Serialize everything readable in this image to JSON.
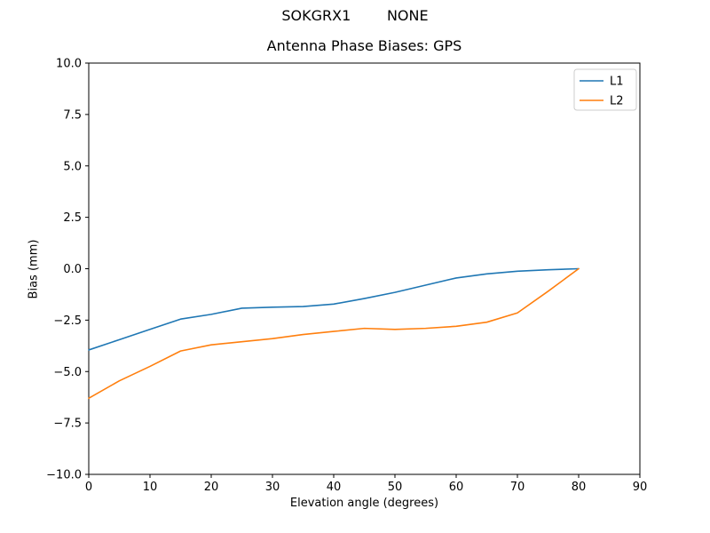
{
  "figure": {
    "suptitle": "SOKGRX1        NONE"
  },
  "chart_data": {
    "type": "line",
    "title": "Antenna Phase Biases: GPS",
    "xlabel": "Elevation angle (degrees)",
    "ylabel": "Bias (mm)",
    "xlim": [
      0,
      90
    ],
    "ylim": [
      -10,
      10
    ],
    "grid": false,
    "legend_position": "upper right",
    "xticks": [
      0,
      10,
      20,
      30,
      40,
      50,
      60,
      70,
      80,
      90
    ],
    "xtick_labels": [
      "0",
      "10",
      "20",
      "30",
      "40",
      "50",
      "60",
      "70",
      "80",
      "90"
    ],
    "yticks": [
      -10,
      -7.5,
      -5,
      -2.5,
      0,
      2.5,
      5,
      7.5,
      10
    ],
    "ytick_labels": [
      "−10.0",
      "−7.5",
      "−5.0",
      "−2.5",
      "0.0",
      "2.5",
      "5.0",
      "7.5",
      "10.0"
    ],
    "x": [
      0,
      5,
      10,
      15,
      20,
      25,
      30,
      35,
      40,
      45,
      50,
      55,
      60,
      65,
      70,
      75,
      80
    ],
    "series": [
      {
        "name": "L1",
        "color": "#1f77b4",
        "values": [
          -3.95,
          -3.45,
          -2.95,
          -2.45,
          -2.22,
          -1.92,
          -1.87,
          -1.84,
          -1.72,
          -1.45,
          -1.15,
          -0.8,
          -0.45,
          -0.25,
          -0.12,
          -0.05,
          0.0
        ]
      },
      {
        "name": "L2",
        "color": "#ff7f0e",
        "values": [
          -6.3,
          -5.45,
          -4.75,
          -4.0,
          -3.7,
          -3.55,
          -3.4,
          -3.2,
          -3.05,
          -2.9,
          -2.95,
          -2.9,
          -2.8,
          -2.6,
          -2.15,
          -1.1,
          0.0
        ]
      }
    ]
  }
}
